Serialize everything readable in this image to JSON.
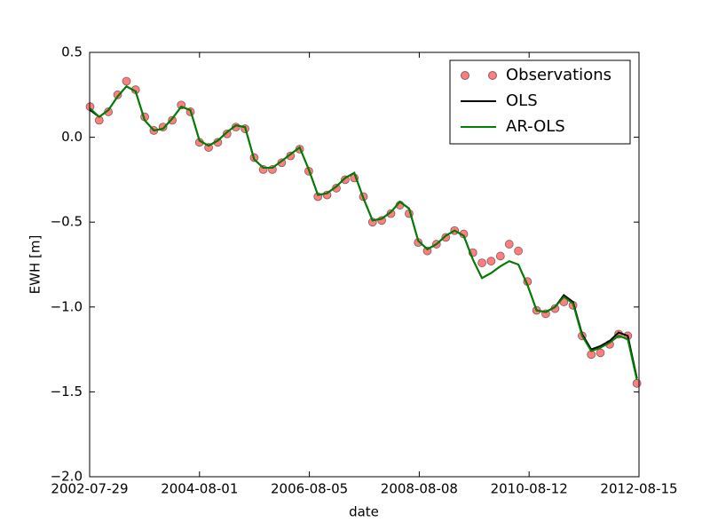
{
  "chart_data": {
    "type": "line",
    "xlabel": "date",
    "ylabel": "EWH [m]",
    "x": [
      "2002-08-01",
      "2002-10-01",
      "2002-12-01",
      "2003-02-01",
      "2003-04-01",
      "2003-06-01",
      "2003-08-01",
      "2003-10-01",
      "2003-12-01",
      "2004-02-01",
      "2004-04-01",
      "2004-06-01",
      "2004-08-01",
      "2004-10-01",
      "2004-12-01",
      "2005-02-01",
      "2005-04-01",
      "2005-06-01",
      "2005-08-01",
      "2005-10-01",
      "2005-12-01",
      "2006-02-01",
      "2006-04-01",
      "2006-06-01",
      "2006-08-01",
      "2006-10-01",
      "2006-12-01",
      "2007-02-01",
      "2007-04-01",
      "2007-06-01",
      "2007-08-01",
      "2007-10-01",
      "2007-12-01",
      "2008-02-01",
      "2008-04-01",
      "2008-06-01",
      "2008-08-01",
      "2008-10-01",
      "2008-12-01",
      "2009-02-01",
      "2009-04-01",
      "2009-06-01",
      "2009-08-01",
      "2009-10-01",
      "2009-12-01",
      "2010-02-01",
      "2010-04-01",
      "2010-06-01",
      "2010-08-01",
      "2010-10-01",
      "2010-12-01",
      "2011-02-01",
      "2011-04-01",
      "2011-06-01",
      "2011-08-01",
      "2011-10-01",
      "2011-12-01",
      "2012-02-01",
      "2012-04-01",
      "2012-06-01",
      "2012-08-01"
    ],
    "series": [
      {
        "name": "Observations",
        "style": "markers",
        "color": "#ff0000",
        "values": [
          0.18,
          0.1,
          0.15,
          0.25,
          0.33,
          0.28,
          0.12,
          0.04,
          0.06,
          0.1,
          0.19,
          0.15,
          -0.03,
          -0.06,
          -0.03,
          0.02,
          0.06,
          0.05,
          -0.12,
          -0.19,
          -0.19,
          -0.15,
          -0.11,
          -0.07,
          -0.2,
          -0.35,
          -0.34,
          -0.3,
          -0.25,
          -0.24,
          -0.35,
          -0.5,
          -0.49,
          -0.45,
          -0.4,
          -0.45,
          -0.62,
          -0.67,
          -0.63,
          -0.59,
          -0.55,
          -0.57,
          -0.68,
          -0.74,
          -0.73,
          -0.7,
          -0.63,
          -0.67,
          -0.85,
          -1.02,
          -1.04,
          -1.01,
          -0.97,
          -0.99,
          -1.17,
          -1.28,
          -1.27,
          -1.22,
          -1.16,
          -1.17,
          -1.45
        ]
      },
      {
        "name": "OLS",
        "style": "line",
        "color": "#000000",
        "values": [
          0.16,
          0.12,
          0.16,
          0.24,
          0.3,
          0.27,
          0.1,
          0.04,
          0.05,
          0.11,
          0.18,
          0.16,
          -0.02,
          -0.05,
          -0.02,
          0.03,
          0.07,
          0.06,
          -0.13,
          -0.18,
          -0.18,
          -0.14,
          -0.1,
          -0.06,
          -0.19,
          -0.34,
          -0.33,
          -0.29,
          -0.24,
          -0.21,
          -0.36,
          -0.49,
          -0.48,
          -0.44,
          -0.38,
          -0.42,
          -0.61,
          -0.66,
          -0.63,
          -0.58,
          -0.55,
          -0.58,
          -0.72,
          -0.83,
          -0.8,
          -0.76,
          -0.73,
          -0.75,
          -0.87,
          -1.02,
          -1.03,
          -1.0,
          -0.93,
          -0.97,
          -1.16,
          -1.25,
          -1.23,
          -1.2,
          -1.15,
          -1.17,
          -1.42
        ]
      },
      {
        "name": "AR-OLS",
        "style": "line",
        "color": "#008000",
        "values": [
          0.17,
          0.12,
          0.16,
          0.24,
          0.3,
          0.27,
          0.1,
          0.04,
          0.05,
          0.11,
          0.18,
          0.16,
          -0.02,
          -0.05,
          -0.02,
          0.03,
          0.07,
          0.06,
          -0.13,
          -0.18,
          -0.18,
          -0.14,
          -0.1,
          -0.06,
          -0.19,
          -0.34,
          -0.33,
          -0.29,
          -0.24,
          -0.21,
          -0.36,
          -0.49,
          -0.48,
          -0.44,
          -0.38,
          -0.42,
          -0.61,
          -0.66,
          -0.63,
          -0.58,
          -0.55,
          -0.58,
          -0.72,
          -0.83,
          -0.8,
          -0.76,
          -0.73,
          -0.75,
          -0.87,
          -1.02,
          -1.03,
          -1.0,
          -0.94,
          -0.98,
          -1.17,
          -1.26,
          -1.24,
          -1.21,
          -1.17,
          -1.19,
          -1.43
        ]
      }
    ],
    "xlim": [
      "2002-07-29",
      "2012-08-15"
    ],
    "xticks": [
      "2002-07-29",
      "2004-08-01",
      "2006-08-05",
      "2008-08-08",
      "2010-08-12",
      "2012-08-15"
    ],
    "ylim": [
      -2.0,
      0.5
    ],
    "yticks": [
      {
        "value": -2.0,
        "label": "−2.0"
      },
      {
        "value": -1.5,
        "label": "−1.5"
      },
      {
        "value": -1.0,
        "label": "−1.0"
      },
      {
        "value": -0.5,
        "label": "−0.5"
      },
      {
        "value": 0,
        "label": "0.0"
      },
      0.5
    ],
    "legend": "upper right",
    "grid": false
  }
}
